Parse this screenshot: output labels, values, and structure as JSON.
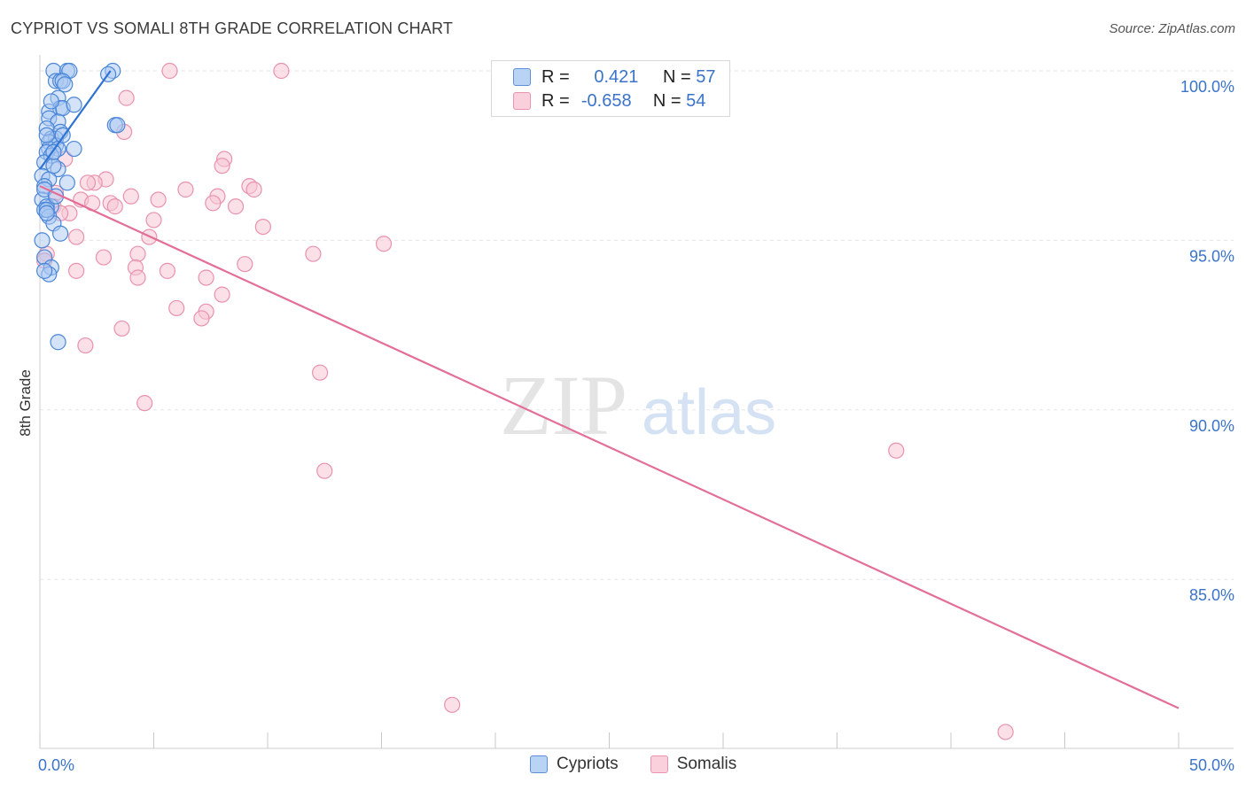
{
  "title": "CYPRIOT VS SOMALI 8TH GRADE CORRELATION CHART",
  "source": "Source: ZipAtlas.com",
  "watermark": {
    "zip": "ZIP",
    "atlas": "atlas"
  },
  "legend": {
    "rows": [
      {
        "r_label": "R =",
        "r_value": "0.421",
        "n_label": "N =",
        "n_value": "57"
      },
      {
        "r_label": "R =",
        "r_value": "-0.658",
        "n_label": "N =",
        "n_value": "54"
      }
    ]
  },
  "bottom_legend": [
    "Cypriots",
    "Somalis"
  ],
  "colors": {
    "blue_fill": "#a9c8f2",
    "blue_stroke": "#4a86d8",
    "blue_line": "#2f72d2",
    "pink_fill": "#f8c6d5",
    "pink_stroke": "#e992ae",
    "pink_line": "#e36f98",
    "grid": "#e6e6e6",
    "tick_text": "#3b73c9"
  },
  "chart_data": {
    "type": "scatter",
    "title": "CYPRIOT VS SOMALI 8TH GRADE CORRELATION CHART",
    "xlabel": "",
    "ylabel": "8th Grade",
    "xlim": [
      0,
      50
    ],
    "ylim": [
      80,
      100.5
    ],
    "x_tick_labels": [
      "0.0%",
      "50.0%"
    ],
    "y_ticks": [
      85,
      90,
      95,
      100
    ],
    "y_tick_labels": [
      "85.0%",
      "90.0%",
      "95.0%",
      "100.0%"
    ],
    "series": [
      {
        "name": "Cypriots",
        "R": 0.421,
        "N": 57,
        "trend": {
          "x": [
            0.0,
            3.1
          ],
          "y": [
            97.1,
            100.0
          ]
        },
        "points": [
          [
            0.6,
            100.0
          ],
          [
            1.2,
            100.0
          ],
          [
            1.3,
            100.0
          ],
          [
            3.2,
            100.0
          ],
          [
            0.7,
            99.7
          ],
          [
            0.9,
            99.7
          ],
          [
            1.0,
            99.7
          ],
          [
            3.0,
            99.9
          ],
          [
            1.1,
            99.6
          ],
          [
            0.8,
            99.2
          ],
          [
            0.9,
            98.9
          ],
          [
            1.0,
            98.9
          ],
          [
            1.5,
            99.0
          ],
          [
            0.4,
            98.8
          ],
          [
            0.4,
            98.6
          ],
          [
            0.8,
            98.5
          ],
          [
            3.3,
            98.4
          ],
          [
            3.4,
            98.4
          ],
          [
            0.3,
            98.3
          ],
          [
            0.9,
            98.2
          ],
          [
            0.5,
            98.0
          ],
          [
            0.7,
            98.0
          ],
          [
            0.4,
            97.9
          ],
          [
            0.7,
            97.8
          ],
          [
            0.4,
            97.7
          ],
          [
            0.8,
            97.7
          ],
          [
            1.5,
            97.7
          ],
          [
            0.3,
            97.6
          ],
          [
            0.5,
            97.5
          ],
          [
            0.2,
            97.3
          ],
          [
            0.8,
            97.1
          ],
          [
            0.1,
            96.9
          ],
          [
            0.4,
            96.8
          ],
          [
            0.2,
            96.6
          ],
          [
            0.1,
            96.2
          ],
          [
            0.5,
            96.0
          ],
          [
            0.3,
            96.0
          ],
          [
            0.2,
            95.9
          ],
          [
            0.4,
            95.7
          ],
          [
            0.6,
            95.5
          ],
          [
            0.3,
            95.9
          ],
          [
            0.1,
            95.0
          ],
          [
            0.2,
            94.5
          ],
          [
            0.5,
            94.2
          ],
          [
            0.4,
            94.0
          ],
          [
            0.2,
            94.1
          ],
          [
            0.8,
            92.0
          ],
          [
            0.3,
            95.8
          ],
          [
            0.2,
            96.5
          ],
          [
            0.6,
            97.2
          ],
          [
            1.0,
            98.1
          ],
          [
            0.5,
            99.1
          ],
          [
            0.6,
            97.6
          ],
          [
            0.3,
            98.1
          ],
          [
            0.7,
            96.3
          ],
          [
            1.2,
            96.7
          ],
          [
            0.9,
            95.2
          ]
        ]
      },
      {
        "name": "Somalis",
        "R": -0.658,
        "N": 54,
        "trend": {
          "x": [
            0.0,
            50.0
          ],
          "y": [
            96.6,
            81.2
          ]
        },
        "points": [
          [
            5.7,
            100.0
          ],
          [
            10.6,
            100.0
          ],
          [
            3.8,
            99.2
          ],
          [
            3.7,
            98.2
          ],
          [
            8.1,
            97.4
          ],
          [
            8.0,
            97.2
          ],
          [
            1.1,
            97.4
          ],
          [
            2.9,
            96.8
          ],
          [
            2.4,
            96.7
          ],
          [
            2.1,
            96.7
          ],
          [
            6.4,
            96.5
          ],
          [
            9.2,
            96.6
          ],
          [
            9.4,
            96.5
          ],
          [
            0.7,
            96.4
          ],
          [
            4.0,
            96.3
          ],
          [
            5.2,
            96.2
          ],
          [
            7.8,
            96.3
          ],
          [
            1.8,
            96.2
          ],
          [
            2.3,
            96.1
          ],
          [
            3.1,
            96.1
          ],
          [
            3.3,
            96.0
          ],
          [
            7.6,
            96.1
          ],
          [
            8.6,
            96.0
          ],
          [
            0.6,
            96.0
          ],
          [
            1.3,
            95.8
          ],
          [
            0.9,
            95.8
          ],
          [
            5.0,
            95.6
          ],
          [
            9.8,
            95.4
          ],
          [
            1.6,
            95.1
          ],
          [
            4.8,
            95.1
          ],
          [
            15.1,
            94.9
          ],
          [
            4.3,
            94.6
          ],
          [
            12.0,
            94.6
          ],
          [
            2.8,
            94.5
          ],
          [
            9.0,
            94.3
          ],
          [
            4.2,
            94.2
          ],
          [
            1.6,
            94.1
          ],
          [
            5.6,
            94.1
          ],
          [
            4.3,
            93.9
          ],
          [
            7.3,
            93.9
          ],
          [
            8.0,
            93.4
          ],
          [
            6.0,
            93.0
          ],
          [
            7.3,
            92.9
          ],
          [
            7.1,
            92.7
          ],
          [
            3.6,
            92.4
          ],
          [
            2.0,
            91.9
          ],
          [
            12.3,
            91.1
          ],
          [
            4.6,
            90.2
          ],
          [
            37.6,
            88.8
          ],
          [
            12.5,
            88.2
          ],
          [
            18.1,
            81.3
          ],
          [
            42.4,
            80.5
          ],
          [
            0.3,
            94.6
          ],
          [
            0.2,
            94.4
          ]
        ]
      }
    ]
  }
}
